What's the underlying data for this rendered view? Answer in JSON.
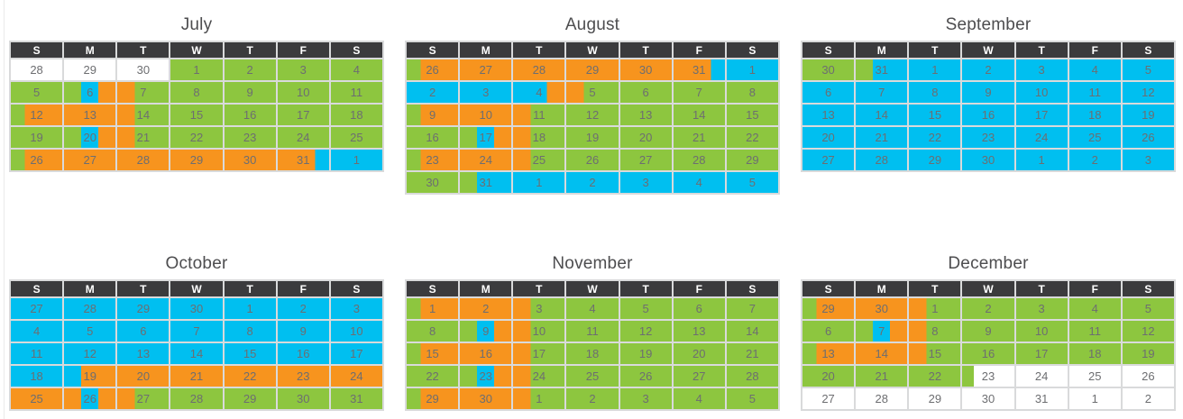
{
  "ui": {
    "page_bg": "#FFFFFF",
    "header_bg": "#3B3B3D",
    "header_text": "#FFFFFF",
    "day_number_text": "#6D6E71",
    "title_text": "#4D4D4F",
    "grid_line": "#D9DADB",
    "left_rule": "#EAEBEB"
  },
  "colors": {
    "g": "#8DC63F",
    "o": "#F7941E",
    "b": "#00BFF0",
    "w": "#FFFFFF"
  },
  "weekday_headers": [
    "S",
    "M",
    "T",
    "W",
    "T",
    "F",
    "S"
  ],
  "months": [
    {
      "title": "July",
      "weeks": [
        [
          {
            "d": 28,
            "seg": "w"
          },
          {
            "d": 29,
            "seg": "w"
          },
          {
            "d": 30,
            "seg": "w"
          },
          {
            "d": 1,
            "seg": "g"
          },
          {
            "d": 2,
            "seg": "g"
          },
          {
            "d": 3,
            "seg": "g"
          },
          {
            "d": 4,
            "seg": "g"
          }
        ],
        [
          {
            "d": 5,
            "seg": "g"
          },
          {
            "d": 6,
            "seg": "g33 b34 o33"
          },
          {
            "d": 7,
            "seg": "o34 g66"
          },
          {
            "d": 8,
            "seg": "g"
          },
          {
            "d": 9,
            "seg": "g"
          },
          {
            "d": 10,
            "seg": "g"
          },
          {
            "d": 11,
            "seg": "g"
          }
        ],
        [
          {
            "d": 12,
            "seg": "g27 o73"
          },
          {
            "d": 13,
            "seg": "o"
          },
          {
            "d": 14,
            "seg": "o34 g66"
          },
          {
            "d": 15,
            "seg": "g"
          },
          {
            "d": 16,
            "seg": "g"
          },
          {
            "d": 17,
            "seg": "g"
          },
          {
            "d": 18,
            "seg": "g"
          }
        ],
        [
          {
            "d": 19,
            "seg": "g"
          },
          {
            "d": 20,
            "seg": "g33 b34 o33"
          },
          {
            "d": 21,
            "seg": "o34 g66"
          },
          {
            "d": 22,
            "seg": "g"
          },
          {
            "d": 23,
            "seg": "g"
          },
          {
            "d": 24,
            "seg": "g"
          },
          {
            "d": 25,
            "seg": "g"
          }
        ],
        [
          {
            "d": 26,
            "seg": "g27 o73"
          },
          {
            "d": 27,
            "seg": "o"
          },
          {
            "d": 28,
            "seg": "o"
          },
          {
            "d": 29,
            "seg": "o"
          },
          {
            "d": 30,
            "seg": "o"
          },
          {
            "d": 31,
            "seg": "o73 b27"
          },
          {
            "d": 1,
            "seg": "b"
          }
        ]
      ]
    },
    {
      "title": "August",
      "weeks": [
        [
          {
            "d": 26,
            "seg": "g27 o73"
          },
          {
            "d": 27,
            "seg": "o"
          },
          {
            "d": 28,
            "seg": "o"
          },
          {
            "d": 29,
            "seg": "o"
          },
          {
            "d": 30,
            "seg": "o"
          },
          {
            "d": 31,
            "seg": "o73 b27"
          },
          {
            "d": 1,
            "seg": "b"
          }
        ],
        [
          {
            "d": 2,
            "seg": "b"
          },
          {
            "d": 3,
            "seg": "b"
          },
          {
            "d": 4,
            "seg": "b66 o34"
          },
          {
            "d": 5,
            "seg": "o34 g66"
          },
          {
            "d": 6,
            "seg": "g"
          },
          {
            "d": 7,
            "seg": "g"
          },
          {
            "d": 8,
            "seg": "g"
          }
        ],
        [
          {
            "d": 9,
            "seg": "g27 o73"
          },
          {
            "d": 10,
            "seg": "o"
          },
          {
            "d": 11,
            "seg": "o34 g66"
          },
          {
            "d": 12,
            "seg": "g"
          },
          {
            "d": 13,
            "seg": "g"
          },
          {
            "d": 14,
            "seg": "g"
          },
          {
            "d": 15,
            "seg": "g"
          }
        ],
        [
          {
            "d": 16,
            "seg": "g"
          },
          {
            "d": 17,
            "seg": "g33 b34 o33"
          },
          {
            "d": 18,
            "seg": "o34 g66"
          },
          {
            "d": 19,
            "seg": "g"
          },
          {
            "d": 20,
            "seg": "g"
          },
          {
            "d": 21,
            "seg": "g"
          },
          {
            "d": 22,
            "seg": "g"
          }
        ],
        [
          {
            "d": 23,
            "seg": "g27 o73"
          },
          {
            "d": 24,
            "seg": "o"
          },
          {
            "d": 25,
            "seg": "o34 g66"
          },
          {
            "d": 26,
            "seg": "g"
          },
          {
            "d": 27,
            "seg": "g"
          },
          {
            "d": 28,
            "seg": "g"
          },
          {
            "d": 29,
            "seg": "g"
          }
        ],
        [
          {
            "d": 30,
            "seg": "g"
          },
          {
            "d": 31,
            "seg": "g33 b67"
          },
          {
            "d": 1,
            "seg": "b"
          },
          {
            "d": 2,
            "seg": "b"
          },
          {
            "d": 3,
            "seg": "b"
          },
          {
            "d": 4,
            "seg": "b"
          },
          {
            "d": 5,
            "seg": "b"
          }
        ]
      ]
    },
    {
      "title": "September",
      "weeks": [
        [
          {
            "d": 30,
            "seg": "g"
          },
          {
            "d": 31,
            "seg": "g33 b67"
          },
          {
            "d": 1,
            "seg": "b"
          },
          {
            "d": 2,
            "seg": "b"
          },
          {
            "d": 3,
            "seg": "b"
          },
          {
            "d": 4,
            "seg": "b"
          },
          {
            "d": 5,
            "seg": "b"
          }
        ],
        [
          {
            "d": 6,
            "seg": "b"
          },
          {
            "d": 7,
            "seg": "b"
          },
          {
            "d": 8,
            "seg": "b"
          },
          {
            "d": 9,
            "seg": "b"
          },
          {
            "d": 10,
            "seg": "b"
          },
          {
            "d": 11,
            "seg": "b"
          },
          {
            "d": 12,
            "seg": "b"
          }
        ],
        [
          {
            "d": 13,
            "seg": "b"
          },
          {
            "d": 14,
            "seg": "b"
          },
          {
            "d": 15,
            "seg": "b"
          },
          {
            "d": 16,
            "seg": "b"
          },
          {
            "d": 17,
            "seg": "b"
          },
          {
            "d": 18,
            "seg": "b"
          },
          {
            "d": 19,
            "seg": "b"
          }
        ],
        [
          {
            "d": 20,
            "seg": "b"
          },
          {
            "d": 21,
            "seg": "b"
          },
          {
            "d": 22,
            "seg": "b"
          },
          {
            "d": 23,
            "seg": "b"
          },
          {
            "d": 24,
            "seg": "b"
          },
          {
            "d": 25,
            "seg": "b"
          },
          {
            "d": 26,
            "seg": "b"
          }
        ],
        [
          {
            "d": 27,
            "seg": "b"
          },
          {
            "d": 28,
            "seg": "b"
          },
          {
            "d": 29,
            "seg": "b"
          },
          {
            "d": 30,
            "seg": "b"
          },
          {
            "d": 1,
            "seg": "b"
          },
          {
            "d": 2,
            "seg": "b"
          },
          {
            "d": 3,
            "seg": "b"
          }
        ]
      ]
    },
    {
      "title": "October",
      "weeks": [
        [
          {
            "d": 27,
            "seg": "b"
          },
          {
            "d": 28,
            "seg": "b"
          },
          {
            "d": 29,
            "seg": "b"
          },
          {
            "d": 30,
            "seg": "b"
          },
          {
            "d": 1,
            "seg": "b"
          },
          {
            "d": 2,
            "seg": "b"
          },
          {
            "d": 3,
            "seg": "b"
          }
        ],
        [
          {
            "d": 4,
            "seg": "b"
          },
          {
            "d": 5,
            "seg": "b"
          },
          {
            "d": 6,
            "seg": "b"
          },
          {
            "d": 7,
            "seg": "b"
          },
          {
            "d": 8,
            "seg": "b"
          },
          {
            "d": 9,
            "seg": "b"
          },
          {
            "d": 10,
            "seg": "b"
          }
        ],
        [
          {
            "d": 11,
            "seg": "b"
          },
          {
            "d": 12,
            "seg": "b"
          },
          {
            "d": 13,
            "seg": "b"
          },
          {
            "d": 14,
            "seg": "b"
          },
          {
            "d": 15,
            "seg": "b"
          },
          {
            "d": 16,
            "seg": "b"
          },
          {
            "d": 17,
            "seg": "b"
          }
        ],
        [
          {
            "d": 18,
            "seg": "b"
          },
          {
            "d": 19,
            "seg": "b33 o67"
          },
          {
            "d": 20,
            "seg": "o"
          },
          {
            "d": 21,
            "seg": "o"
          },
          {
            "d": 22,
            "seg": "o"
          },
          {
            "d": 23,
            "seg": "o"
          },
          {
            "d": 24,
            "seg": "o"
          }
        ],
        [
          {
            "d": 25,
            "seg": "o"
          },
          {
            "d": 26,
            "seg": "o33 b34 o33"
          },
          {
            "d": 27,
            "seg": "o34 g66"
          },
          {
            "d": 28,
            "seg": "g"
          },
          {
            "d": 29,
            "seg": "g"
          },
          {
            "d": 30,
            "seg": "g"
          },
          {
            "d": 31,
            "seg": "g"
          }
        ]
      ]
    },
    {
      "title": "November",
      "weeks": [
        [
          {
            "d": 1,
            "seg": "g27 o73"
          },
          {
            "d": 2,
            "seg": "o"
          },
          {
            "d": 3,
            "seg": "o34 g66"
          },
          {
            "d": 4,
            "seg": "g"
          },
          {
            "d": 5,
            "seg": "g"
          },
          {
            "d": 6,
            "seg": "g"
          },
          {
            "d": 7,
            "seg": "g"
          }
        ],
        [
          {
            "d": 8,
            "seg": "g"
          },
          {
            "d": 9,
            "seg": "g33 b34 o33"
          },
          {
            "d": 10,
            "seg": "o34 g66"
          },
          {
            "d": 11,
            "seg": "g"
          },
          {
            "d": 12,
            "seg": "g"
          },
          {
            "d": 13,
            "seg": "g"
          },
          {
            "d": 14,
            "seg": "g"
          }
        ],
        [
          {
            "d": 15,
            "seg": "g27 o73"
          },
          {
            "d": 16,
            "seg": "o"
          },
          {
            "d": 17,
            "seg": "o34 g66"
          },
          {
            "d": 18,
            "seg": "g"
          },
          {
            "d": 19,
            "seg": "g"
          },
          {
            "d": 20,
            "seg": "g"
          },
          {
            "d": 21,
            "seg": "g"
          }
        ],
        [
          {
            "d": 22,
            "seg": "g"
          },
          {
            "d": 23,
            "seg": "g33 b34 o33"
          },
          {
            "d": 24,
            "seg": "o34 g66"
          },
          {
            "d": 25,
            "seg": "g"
          },
          {
            "d": 26,
            "seg": "g"
          },
          {
            "d": 27,
            "seg": "g"
          },
          {
            "d": 28,
            "seg": "g"
          }
        ],
        [
          {
            "d": 29,
            "seg": "g27 o73"
          },
          {
            "d": 30,
            "seg": "o"
          },
          {
            "d": 1,
            "seg": "o34 g66"
          },
          {
            "d": 2,
            "seg": "g"
          },
          {
            "d": 3,
            "seg": "g"
          },
          {
            "d": 4,
            "seg": "g"
          },
          {
            "d": 5,
            "seg": "g"
          }
        ]
      ]
    },
    {
      "title": "December",
      "weeks": [
        [
          {
            "d": 29,
            "seg": "g27 o73"
          },
          {
            "d": 30,
            "seg": "o"
          },
          {
            "d": 1,
            "seg": "o34 g66"
          },
          {
            "d": 2,
            "seg": "g"
          },
          {
            "d": 3,
            "seg": "g"
          },
          {
            "d": 4,
            "seg": "g"
          },
          {
            "d": 5,
            "seg": "g"
          }
        ],
        [
          {
            "d": 6,
            "seg": "g"
          },
          {
            "d": 7,
            "seg": "g33 b34 o33"
          },
          {
            "d": 8,
            "seg": "o34 g66"
          },
          {
            "d": 9,
            "seg": "g"
          },
          {
            "d": 10,
            "seg": "g"
          },
          {
            "d": 11,
            "seg": "g"
          },
          {
            "d": 12,
            "seg": "g"
          }
        ],
        [
          {
            "d": 13,
            "seg": "g27 o73"
          },
          {
            "d": 14,
            "seg": "o"
          },
          {
            "d": 15,
            "seg": "o34 g66"
          },
          {
            "d": 16,
            "seg": "g"
          },
          {
            "d": 17,
            "seg": "g"
          },
          {
            "d": 18,
            "seg": "g"
          },
          {
            "d": 19,
            "seg": "g"
          }
        ],
        [
          {
            "d": 20,
            "seg": "g"
          },
          {
            "d": 21,
            "seg": "g"
          },
          {
            "d": 22,
            "seg": "g"
          },
          {
            "d": 23,
            "seg": "g22 w78"
          },
          {
            "d": 24,
            "seg": "w"
          },
          {
            "d": 25,
            "seg": "w"
          },
          {
            "d": 26,
            "seg": "w"
          }
        ],
        [
          {
            "d": 27,
            "seg": "w"
          },
          {
            "d": 28,
            "seg": "w"
          },
          {
            "d": 29,
            "seg": "w"
          },
          {
            "d": 30,
            "seg": "w"
          },
          {
            "d": 31,
            "seg": "w"
          },
          {
            "d": 1,
            "seg": "w"
          },
          {
            "d": 2,
            "seg": "w"
          }
        ]
      ]
    }
  ]
}
